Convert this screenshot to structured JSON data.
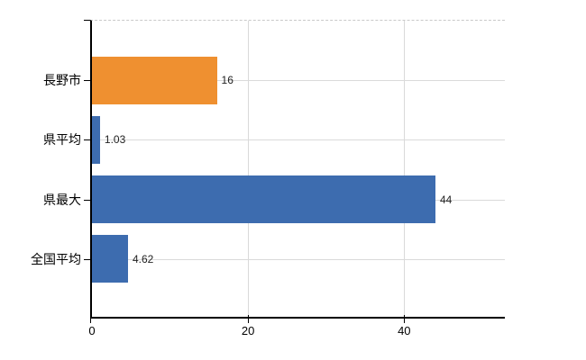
{
  "chart_data": {
    "type": "bar",
    "orientation": "horizontal",
    "title": "",
    "xlabel": "",
    "ylabel": "",
    "categories": [
      "長野市",
      "県平均",
      "県最大",
      "全国平均"
    ],
    "values": [
      16,
      1.03,
      44,
      4.62
    ],
    "value_labels": [
      "16",
      "1.03",
      "44",
      "4.62"
    ],
    "bar_colors": [
      "#EF9030",
      "#3D6CAF",
      "#3D6CAF",
      "#3D6CAF"
    ],
    "x_ticks": [
      0,
      20,
      40
    ],
    "x_tick_labels": [
      "0",
      "20",
      "40"
    ],
    "xlim": [
      0,
      52.9
    ],
    "grid": true,
    "legend": "none",
    "colors": {
      "accent_orange": "#EF9030",
      "accent_blue": "#3D6CAF",
      "gridline": "#d9d9d9",
      "axis": "#000000",
      "value_text": "#222222",
      "label_text": "#000000",
      "background": "#ffffff"
    }
  }
}
